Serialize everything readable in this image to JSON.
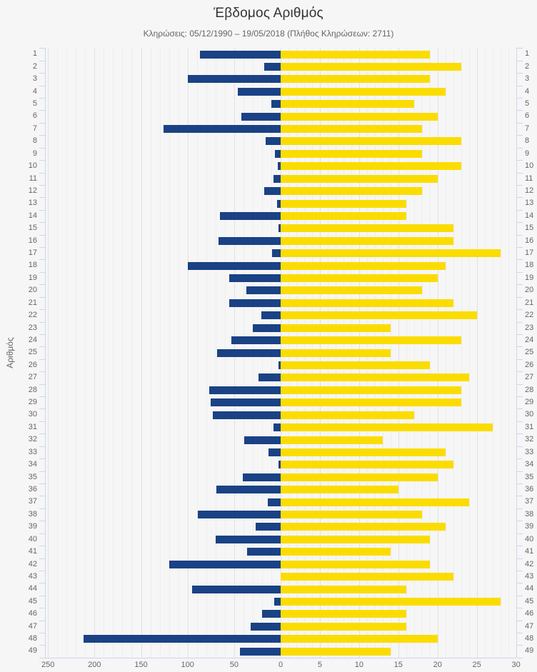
{
  "chart_data": {
    "type": "bar",
    "orientation": "horizontal-bidirectional",
    "title": "Έβδομος Αριθμός",
    "subtitle": "Κληρώσεις: 05/12/1990 – 19/05/2018 (Πλήθος Κληρώσεων: 2711)",
    "ylabel": "Αριθμός",
    "legend": false,
    "grid": true,
    "categories": [
      1,
      2,
      3,
      4,
      5,
      6,
      7,
      8,
      9,
      10,
      11,
      12,
      13,
      14,
      15,
      16,
      17,
      18,
      19,
      20,
      21,
      22,
      23,
      24,
      25,
      26,
      27,
      28,
      29,
      30,
      31,
      32,
      33,
      34,
      35,
      36,
      37,
      38,
      39,
      40,
      41,
      42,
      43,
      44,
      45,
      46,
      47,
      48,
      49
    ],
    "series": [
      {
        "name": "blue",
        "color": "#1a4284",
        "direction": "left",
        "axis_range": [
          0,
          250
        ],
        "axis_ticks": [
          250,
          200,
          150,
          100,
          50
        ],
        "minor_tick_interval": 10,
        "values": [
          87,
          18,
          100,
          46,
          10,
          42,
          126,
          16,
          6,
          3,
          8,
          18,
          4,
          65,
          2,
          67,
          9,
          100,
          55,
          37,
          55,
          21,
          30,
          53,
          68,
          2,
          24,
          77,
          75,
          73,
          8,
          39,
          13,
          2,
          41,
          69,
          14,
          89,
          27,
          70,
          36,
          120,
          0,
          95,
          7,
          20,
          32,
          212,
          44
        ]
      },
      {
        "name": "yellow",
        "color": "#fbdc00",
        "direction": "right",
        "axis_range": [
          0,
          30
        ],
        "axis_ticks": [
          5,
          10,
          15,
          20,
          25,
          30
        ],
        "minor_tick_interval": 1,
        "values": [
          19,
          23,
          19,
          21,
          17,
          20,
          18,
          23,
          18,
          23,
          20,
          18,
          16,
          16,
          22,
          22,
          28,
          21,
          20,
          18,
          22,
          25,
          14,
          23,
          14,
          19,
          24,
          23,
          23,
          17,
          27,
          13,
          21,
          22,
          20,
          15,
          24,
          18,
          21,
          19,
          14,
          19,
          22,
          16,
          28,
          16,
          16,
          20,
          14
        ]
      }
    ],
    "x_axis_labels": [
      "250",
      "200",
      "150",
      "100",
      "50",
      "0",
      "5",
      "10",
      "15",
      "20",
      "25",
      "30"
    ]
  }
}
